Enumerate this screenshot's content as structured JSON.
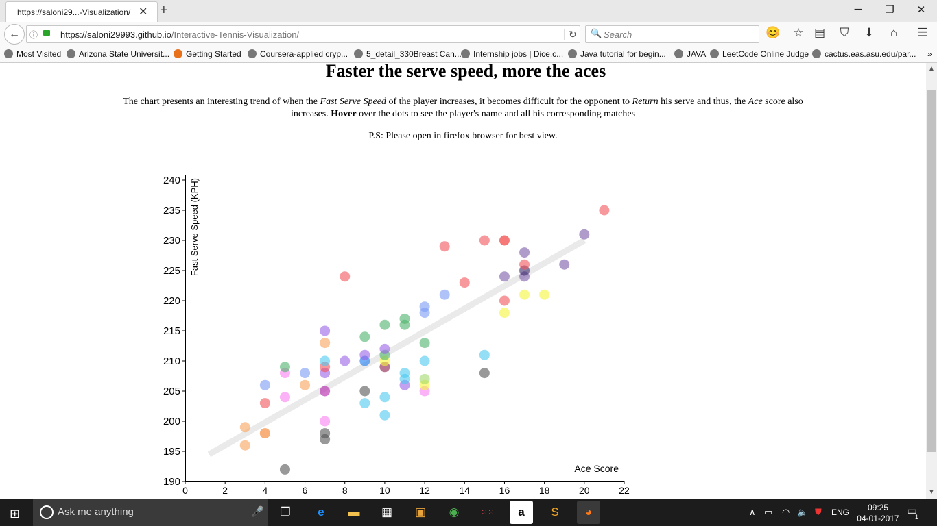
{
  "browser": {
    "tab_title": "https://saloni29...-Visualization/",
    "url_domain": "https://saloni29993.github.io",
    "url_path": "/Interactive-Tennis-Visualization/",
    "search_placeholder": "Search",
    "bookmarks": [
      "Most Visited",
      "Arizona State Universit...",
      "Getting Started",
      "Coursera-applied cryp...",
      "5_detail_330Breast Can...",
      "Internship jobs | Dice.c...",
      "Java tutorial for begin...",
      "JAVA",
      "LeetCode Online Judge",
      "cactus.eas.asu.edu/par..."
    ]
  },
  "page": {
    "heading": "Faster the serve speed, more the aces",
    "desc_part1": "The chart presents an interesting trend of when the ",
    "desc_em1": "Fast Serve Speed",
    "desc_part2": " of the player increases, it becomes difficult for the opponent to ",
    "desc_em2": "Return",
    "desc_part3": " his serve and thus, the ",
    "desc_em3": "Ace",
    "desc_part4": " score also increases. ",
    "desc_bold": "Hover",
    "desc_part5": " over the dots to see the player's name and all his corresponding matches",
    "ps": "P.S: Please open in firefox browser for best view."
  },
  "chart_data": {
    "type": "scatter",
    "xlabel": "Ace Score",
    "ylabel": "Fast Serve Speed (KPH)",
    "xlim": [
      0,
      22
    ],
    "ylim": [
      190,
      240
    ],
    "xticks": [
      0,
      2,
      4,
      6,
      8,
      10,
      12,
      14,
      16,
      18,
      20,
      22
    ],
    "yticks": [
      190,
      195,
      200,
      205,
      210,
      215,
      220,
      225,
      230,
      235,
      240
    ],
    "trendline": {
      "x": [
        1.2,
        20
      ],
      "y": [
        194.5,
        230
      ]
    },
    "points": [
      {
        "x": 3,
        "y": 199,
        "color": "#f9a15a"
      },
      {
        "x": 3,
        "y": 196,
        "color": "#f9a15a"
      },
      {
        "x": 4,
        "y": 198,
        "color": "#f47a20"
      },
      {
        "x": 4,
        "y": 203,
        "color": "#f0535a"
      },
      {
        "x": 4,
        "y": 206,
        "color": "#7a9bf5"
      },
      {
        "x": 5,
        "y": 192,
        "color": "#555555"
      },
      {
        "x": 5,
        "y": 204,
        "color": "#f87ff0"
      },
      {
        "x": 5,
        "y": 208,
        "color": "#f87ff0"
      },
      {
        "x": 5,
        "y": 209,
        "color": "#4fb36a"
      },
      {
        "x": 6,
        "y": 206,
        "color": "#f9a15a"
      },
      {
        "x": 6,
        "y": 208,
        "color": "#7a9bf5"
      },
      {
        "x": 7,
        "y": 197,
        "color": "#555555"
      },
      {
        "x": 7,
        "y": 198,
        "color": "#555555"
      },
      {
        "x": 7,
        "y": 200,
        "color": "#f87ff0"
      },
      {
        "x": 7,
        "y": 205,
        "color": "#b21ca8"
      },
      {
        "x": 7,
        "y": 208,
        "color": "#9a62e8"
      },
      {
        "x": 7,
        "y": 209,
        "color": "#f0535a"
      },
      {
        "x": 7,
        "y": 210,
        "color": "#4cc8f0"
      },
      {
        "x": 7,
        "y": 213,
        "color": "#f9a15a"
      },
      {
        "x": 7,
        "y": 215,
        "color": "#9a62e8"
      },
      {
        "x": 8,
        "y": 210,
        "color": "#9a62e8"
      },
      {
        "x": 8,
        "y": 224,
        "color": "#f0535a"
      },
      {
        "x": 9,
        "y": 203,
        "color": "#4cc8f0"
      },
      {
        "x": 9,
        "y": 205,
        "color": "#555555"
      },
      {
        "x": 9,
        "y": 210,
        "color": "#1a78f0"
      },
      {
        "x": 9,
        "y": 211,
        "color": "#9a62e8"
      },
      {
        "x": 9,
        "y": 214,
        "color": "#4fb36a"
      },
      {
        "x": 10,
        "y": 201,
        "color": "#4cc8f0"
      },
      {
        "x": 10,
        "y": 204,
        "color": "#4cc8f0"
      },
      {
        "x": 10,
        "y": 209,
        "color": "#8a1a4a"
      },
      {
        "x": 10,
        "y": 210,
        "color": "#f5f53a"
      },
      {
        "x": 10,
        "y": 211,
        "color": "#4fb36a"
      },
      {
        "x": 10,
        "y": 212,
        "color": "#9a62e8"
      },
      {
        "x": 10,
        "y": 216,
        "color": "#4fb36a"
      },
      {
        "x": 11,
        "y": 206,
        "color": "#9a62e8"
      },
      {
        "x": 11,
        "y": 207,
        "color": "#4cc8f0"
      },
      {
        "x": 11,
        "y": 208,
        "color": "#4cc8f0"
      },
      {
        "x": 11,
        "y": 216,
        "color": "#4fb36a"
      },
      {
        "x": 11,
        "y": 217,
        "color": "#4fb36a"
      },
      {
        "x": 12,
        "y": 205,
        "color": "#f87ff0"
      },
      {
        "x": 12,
        "y": 206,
        "color": "#f5f53a"
      },
      {
        "x": 12,
        "y": 207,
        "color": "#a2d86a"
      },
      {
        "x": 12,
        "y": 210,
        "color": "#4cc8f0"
      },
      {
        "x": 12,
        "y": 213,
        "color": "#4fb36a"
      },
      {
        "x": 12,
        "y": 218,
        "color": "#7a9bf5"
      },
      {
        "x": 12,
        "y": 219,
        "color": "#7a9bf5"
      },
      {
        "x": 13,
        "y": 221,
        "color": "#7a9bf5"
      },
      {
        "x": 13,
        "y": 229,
        "color": "#f0535a"
      },
      {
        "x": 14,
        "y": 223,
        "color": "#f0535a"
      },
      {
        "x": 15,
        "y": 208,
        "color": "#555555"
      },
      {
        "x": 15,
        "y": 211,
        "color": "#4cc8f0"
      },
      {
        "x": 15,
        "y": 230,
        "color": "#f0535a"
      },
      {
        "x": 16,
        "y": 218,
        "color": "#f5f53a"
      },
      {
        "x": 16,
        "y": 220,
        "color": "#f0535a"
      },
      {
        "x": 16,
        "y": 224,
        "color": "#7a5aa8"
      },
      {
        "x": 16,
        "y": 230,
        "color": "#f02020"
      },
      {
        "x": 17,
        "y": 221,
        "color": "#f5f53a"
      },
      {
        "x": 17,
        "y": 224,
        "color": "#7a5aa8"
      },
      {
        "x": 17,
        "y": 225,
        "color": "#3a2a6a"
      },
      {
        "x": 17,
        "y": 226,
        "color": "#f0535a"
      },
      {
        "x": 17,
        "y": 228,
        "color": "#7a5aa8"
      },
      {
        "x": 18,
        "y": 221,
        "color": "#f5f53a"
      },
      {
        "x": 19,
        "y": 226,
        "color": "#7a5aa8"
      },
      {
        "x": 20,
        "y": 231,
        "color": "#7a5aa8"
      },
      {
        "x": 21,
        "y": 235,
        "color": "#f0535a"
      }
    ]
  },
  "taskbar": {
    "search_placeholder": "Ask me anything",
    "lang": "ENG",
    "time": "09:25",
    "date": "04-01-2017",
    "notification_count": "1"
  }
}
